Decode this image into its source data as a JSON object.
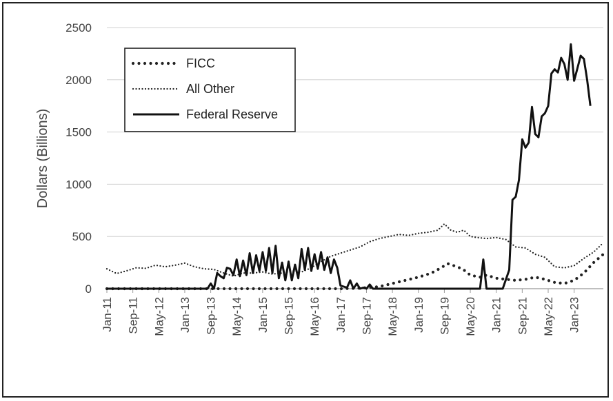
{
  "chart_data": {
    "type": "line",
    "title": "",
    "xlabel": "",
    "ylabel": "Dollars (Billions)",
    "ylim": [
      0,
      2500
    ],
    "yticks": [
      0,
      500,
      1000,
      1500,
      2000,
      2500
    ],
    "x_tick_labels": [
      "Jan-11",
      "Sep-11",
      "May-12",
      "Jan-13",
      "Sep-13",
      "May-14",
      "Jan-15",
      "Sep-15",
      "May-16",
      "Jan-17",
      "Sep-17",
      "May-18",
      "Jan-19",
      "Sep-19",
      "May-20",
      "Jan-21",
      "Sep-21",
      "May-22",
      "Jan-23"
    ],
    "x_start": "Jan-11",
    "x_end": "Oct-23",
    "grid": "horizontal",
    "legend_position": "top-left",
    "series": [
      {
        "name": "FICC",
        "style": "dotted-heavy",
        "color": "#222222",
        "points": [
          [
            "Jan-11",
            0
          ],
          [
            "Jan-12",
            0
          ],
          [
            "Jan-13",
            0
          ],
          [
            "Jan-14",
            0
          ],
          [
            "Jan-15",
            0
          ],
          [
            "Jan-16",
            0
          ],
          [
            "Jan-17",
            0
          ],
          [
            "Jul-17",
            5
          ],
          [
            "Jan-18",
            20
          ],
          [
            "May-18",
            50
          ],
          [
            "Sep-18",
            80
          ],
          [
            "Jan-19",
            110
          ],
          [
            "May-19",
            150
          ],
          [
            "Aug-19",
            200
          ],
          [
            "Oct-19",
            240
          ],
          [
            "Jan-20",
            210
          ],
          [
            "Mar-20",
            180
          ],
          [
            "May-20",
            130
          ],
          [
            "Aug-20",
            110
          ],
          [
            "Oct-20",
            130
          ],
          [
            "Jan-21",
            100
          ],
          [
            "Apr-21",
            90
          ],
          [
            "Jul-21",
            80
          ],
          [
            "Oct-21",
            90
          ],
          [
            "Jan-22",
            110
          ],
          [
            "Apr-22",
            90
          ],
          [
            "Jul-22",
            60
          ],
          [
            "Oct-22",
            50
          ],
          [
            "Jan-23",
            80
          ],
          [
            "Apr-23",
            150
          ],
          [
            "Jul-23",
            250
          ],
          [
            "Oct-23",
            330
          ]
        ]
      },
      {
        "name": "All Other",
        "style": "dotted-fine",
        "color": "#222222",
        "points": [
          [
            "Jan-11",
            190
          ],
          [
            "Apr-11",
            145
          ],
          [
            "Jul-11",
            170
          ],
          [
            "Oct-11",
            200
          ],
          [
            "Jan-12",
            195
          ],
          [
            "Apr-12",
            225
          ],
          [
            "Jul-12",
            210
          ],
          [
            "Oct-12",
            225
          ],
          [
            "Jan-13",
            245
          ],
          [
            "Apr-13",
            210
          ],
          [
            "Jul-13",
            190
          ],
          [
            "Oct-13",
            185
          ],
          [
            "Jan-14",
            150
          ],
          [
            "Apr-14",
            120
          ],
          [
            "Jul-14",
            150
          ],
          [
            "Oct-14",
            150
          ],
          [
            "Jan-15",
            160
          ],
          [
            "Apr-15",
            140
          ],
          [
            "Jul-15",
            150
          ],
          [
            "Oct-15",
            170
          ],
          [
            "Jan-16",
            160
          ],
          [
            "Apr-16",
            200
          ],
          [
            "Jul-16",
            260
          ],
          [
            "Oct-16",
            310
          ],
          [
            "Jan-17",
            340
          ],
          [
            "Apr-17",
            370
          ],
          [
            "Jul-17",
            400
          ],
          [
            "Oct-17",
            450
          ],
          [
            "Jan-18",
            480
          ],
          [
            "Apr-18",
            500
          ],
          [
            "Jul-18",
            520
          ],
          [
            "Oct-18",
            510
          ],
          [
            "Jan-19",
            530
          ],
          [
            "Apr-19",
            540
          ],
          [
            "Jul-19",
            560
          ],
          [
            "Sep-19",
            620
          ],
          [
            "Nov-19",
            560
          ],
          [
            "Jan-20",
            540
          ],
          [
            "Mar-20",
            560
          ],
          [
            "May-20",
            500
          ],
          [
            "Jul-20",
            490
          ],
          [
            "Oct-20",
            480
          ],
          [
            "Jan-21",
            490
          ],
          [
            "Apr-21",
            470
          ],
          [
            "Jul-21",
            400
          ],
          [
            "Oct-21",
            390
          ],
          [
            "Jan-22",
            330
          ],
          [
            "Apr-22",
            300
          ],
          [
            "Jul-22",
            210
          ],
          [
            "Oct-22",
            200
          ],
          [
            "Jan-23",
            220
          ],
          [
            "Apr-23",
            290
          ],
          [
            "Jul-23",
            350
          ],
          [
            "Oct-23",
            440
          ]
        ]
      },
      {
        "name": "Federal Reserve",
        "style": "solid",
        "color": "#111111",
        "points": [
          [
            "Jan-11",
            0
          ],
          [
            "Jan-12",
            0
          ],
          [
            "Jan-13",
            0
          ],
          [
            "Aug-13",
            0
          ],
          [
            "Sep-13",
            50
          ],
          [
            "Oct-13",
            0
          ],
          [
            "Nov-13",
            150
          ],
          [
            "Dec-13",
            120
          ],
          [
            "Jan-14",
            100
          ],
          [
            "Feb-14",
            200
          ],
          [
            "Mar-14",
            190
          ],
          [
            "Apr-14",
            130
          ],
          [
            "May-14",
            280
          ],
          [
            "Jun-14",
            120
          ],
          [
            "Jul-14",
            270
          ],
          [
            "Aug-14",
            130
          ],
          [
            "Sep-14",
            340
          ],
          [
            "Oct-14",
            150
          ],
          [
            "Nov-14",
            320
          ],
          [
            "Dec-14",
            170
          ],
          [
            "Jan-15",
            350
          ],
          [
            "Feb-15",
            170
          ],
          [
            "Mar-15",
            390
          ],
          [
            "Apr-15",
            150
          ],
          [
            "May-15",
            410
          ],
          [
            "Jun-15",
            100
          ],
          [
            "Jul-15",
            250
          ],
          [
            "Aug-15",
            80
          ],
          [
            "Sep-15",
            260
          ],
          [
            "Oct-15",
            80
          ],
          [
            "Nov-15",
            230
          ],
          [
            "Dec-15",
            100
          ],
          [
            "Jan-16",
            380
          ],
          [
            "Feb-16",
            180
          ],
          [
            "Mar-16",
            390
          ],
          [
            "Apr-16",
            170
          ],
          [
            "May-16",
            330
          ],
          [
            "Jun-16",
            190
          ],
          [
            "Jul-16",
            350
          ],
          [
            "Aug-16",
            180
          ],
          [
            "Sep-16",
            300
          ],
          [
            "Oct-16",
            150
          ],
          [
            "Nov-16",
            280
          ],
          [
            "Dec-16",
            200
          ],
          [
            "Jan-17",
            30
          ],
          [
            "Feb-17",
            20
          ],
          [
            "Mar-17",
            10
          ],
          [
            "Apr-17",
            80
          ],
          [
            "May-17",
            0
          ],
          [
            "Jun-17",
            50
          ],
          [
            "Jul-17",
            0
          ],
          [
            "Aug-17",
            10
          ],
          [
            "Sep-17",
            0
          ],
          [
            "Oct-17",
            40
          ],
          [
            "Nov-17",
            0
          ],
          [
            "Jan-18",
            0
          ],
          [
            "Jan-19",
            0
          ],
          [
            "Jan-20",
            0
          ],
          [
            "Aug-20",
            0
          ],
          [
            "Sep-20",
            280
          ],
          [
            "Oct-20",
            0
          ],
          [
            "Jan-21",
            0
          ],
          [
            "Mar-21",
            0
          ],
          [
            "May-21",
            180
          ],
          [
            "Jun-21",
            850
          ],
          [
            "Jul-21",
            880
          ],
          [
            "Aug-21",
            1040
          ],
          [
            "Sep-21",
            1430
          ],
          [
            "Oct-21",
            1350
          ],
          [
            "Nov-21",
            1400
          ],
          [
            "Dec-21",
            1740
          ],
          [
            "Jan-22",
            1480
          ],
          [
            "Feb-22",
            1450
          ],
          [
            "Mar-22",
            1650
          ],
          [
            "Apr-22",
            1680
          ],
          [
            "May-22",
            1750
          ],
          [
            "Jun-22",
            2060
          ],
          [
            "Jul-22",
            2100
          ],
          [
            "Aug-22",
            2070
          ],
          [
            "Sep-22",
            2210
          ],
          [
            "Oct-22",
            2150
          ],
          [
            "Nov-22",
            2000
          ],
          [
            "Dec-22",
            2340
          ],
          [
            "Jan-23",
            1990
          ],
          [
            "Feb-23",
            2110
          ],
          [
            "Mar-23",
            2230
          ],
          [
            "Apr-23",
            2200
          ],
          [
            "May-23",
            2000
          ],
          [
            "Jun-23",
            1750
          ]
        ]
      }
    ]
  }
}
